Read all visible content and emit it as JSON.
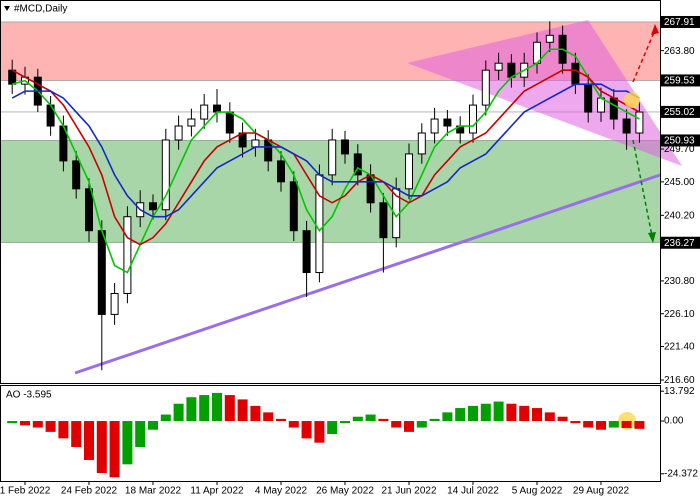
{
  "chart_data": {
    "type": "candlestick",
    "title": "#MCD,Daily",
    "categories": [
      null,
      "1 Feb 2022",
      null,
      null,
      null,
      null,
      "24 Feb 2022",
      null,
      null,
      null,
      null,
      "18 Mar 2022",
      null,
      null,
      null,
      null,
      "11 Apr 2022",
      null,
      null,
      null,
      null,
      "4 May 2022",
      null,
      null,
      null,
      null,
      "26 May 2022",
      null,
      null,
      null,
      null,
      "21 Jun 2022",
      null,
      null,
      null,
      null,
      "14 Jul 2022",
      null,
      null,
      null,
      null,
      "5 Aug 2022",
      null,
      null,
      null,
      null,
      "29 Aug 2022",
      null,
      null,
      null
    ],
    "open": [
      261,
      259,
      260,
      256,
      253,
      248,
      244,
      238,
      226,
      229,
      240,
      242,
      241,
      251,
      253,
      254,
      256,
      255,
      252,
      250,
      251,
      248,
      245,
      238,
      232,
      246,
      251,
      249,
      246,
      242,
      237,
      244,
      249,
      252,
      254,
      253,
      252,
      256,
      261,
      262,
      260,
      262,
      265,
      266,
      262,
      259,
      255,
      257,
      254,
      252
    ],
    "high": [
      262.5,
      261.5,
      261.2,
      257.3,
      254.5,
      249.4,
      245.5,
      239.5,
      230.5,
      241.5,
      243.8,
      243.2,
      252.6,
      254.5,
      255.5,
      257.6,
      258.3,
      256.4,
      253.5,
      252.6,
      252.4,
      249.4,
      246.5,
      239.4,
      247.5,
      252.6,
      252.3,
      250.4,
      247.5,
      243.4,
      245.6,
      250.5,
      253.4,
      255.6,
      255.3,
      254.4,
      257.5,
      262.4,
      263.5,
      263.3,
      263.5,
      266.4,
      268.0,
      267.4,
      263.5,
      260.4,
      258.5,
      258.3,
      255.4,
      256.5
    ],
    "low": [
      257.6,
      257.5,
      255.0,
      251.6,
      246.5,
      242.6,
      236.4,
      218.0,
      224.5,
      227.6,
      238.5,
      239.6,
      239.5,
      249.6,
      251.5,
      252.6,
      253.5,
      250.6,
      248.5,
      248.6,
      246.5,
      243.6,
      236.5,
      228.5,
      230.6,
      244.5,
      247.6,
      244.5,
      240.6,
      232.0,
      235.6,
      242.5,
      247.6,
      250.5,
      251.6,
      250.5,
      250.6,
      254.5,
      259.6,
      258.5,
      258.6,
      260.5,
      263.6,
      260.5,
      257.6,
      253.5,
      253.6,
      252.5,
      249.6,
      250.6
    ],
    "close": [
      259,
      260,
      256,
      253,
      248,
      244,
      238,
      226,
      229,
      240,
      242,
      241,
      251,
      253,
      254,
      256,
      255,
      252,
      250,
      251,
      248,
      245,
      238,
      232,
      246,
      251,
      249,
      246,
      242,
      237,
      244,
      249,
      252,
      254,
      253,
      252,
      256,
      261,
      262,
      260,
      262,
      265,
      266,
      262,
      259,
      255,
      257,
      254,
      252,
      255
    ],
    "series": [
      {
        "color": "#00c800",
        "values": [
          259,
          259.5,
          258,
          256,
          253,
          249,
          245,
          238,
          233,
          232,
          236,
          240,
          243,
          247,
          251,
          253,
          255,
          255,
          254,
          252,
          251,
          249,
          246,
          241,
          238,
          240,
          244,
          247,
          246,
          243,
          240,
          242,
          246,
          250,
          252,
          253,
          253,
          255,
          258,
          260,
          261,
          262,
          264,
          264,
          263,
          260,
          257,
          256,
          255,
          254
        ]
      },
      {
        "color": "#c80000",
        "values": [
          261,
          260,
          259,
          258,
          256,
          253,
          250,
          246,
          240,
          237,
          236,
          237,
          239,
          242,
          245,
          248,
          250,
          251,
          252,
          252,
          251,
          250,
          249,
          246,
          243,
          242,
          243,
          245,
          246,
          245,
          243,
          242,
          243,
          246,
          248,
          250,
          251,
          252,
          254,
          256,
          258,
          259,
          260,
          261,
          261,
          260,
          258,
          257,
          256,
          255
        ]
      },
      {
        "color": "#1428c8",
        "values": [
          257,
          258,
          258,
          258,
          257,
          255,
          253,
          250,
          246,
          243,
          241,
          240,
          240,
          241,
          243,
          245,
          247,
          248,
          249,
          250,
          250,
          250,
          249,
          248,
          246,
          245,
          245,
          245,
          245,
          245,
          244,
          243,
          243,
          244,
          245,
          247,
          248,
          249,
          251,
          253,
          255,
          256,
          257,
          258,
          259,
          259,
          259,
          258,
          258,
          257
        ]
      }
    ],
    "zones": [
      {
        "from": 259.53,
        "to": 267.91,
        "color": "#ffb4b4"
      },
      {
        "from": 236.27,
        "to": 250.93,
        "color": "#a9d6a9"
      }
    ],
    "levels": [
      255.02
    ],
    "ylim": [
      216.17,
      271.06
    ],
    "yticks": [
      267.91,
      {
        "value": 263.8,
        "label": "263.80"
      },
      259.53,
      255.02,
      250.93,
      {
        "value": 249.7,
        "label": "249.70"
      },
      {
        "value": 245.0,
        "label": "245.00"
      },
      {
        "value": 240.2,
        "label": "240.20"
      },
      236.27,
      {
        "value": 230.8,
        "label": "230.80"
      },
      {
        "value": 226.1,
        "label": "226.10"
      },
      {
        "value": 221.4,
        "label": "221.40"
      },
      {
        "value": 216.6,
        "label": "216.60"
      }
    ],
    "indicator": {
      "title": "AO -3.595",
      "values": [
        -1,
        -2,
        -3,
        -5,
        -8,
        -12,
        -18,
        -24,
        -26,
        -20,
        -12,
        -4,
        3,
        8,
        11,
        12,
        13,
        12,
        10,
        7,
        4,
        1,
        -3,
        -8,
        -10,
        -6,
        -1,
        2,
        3,
        1,
        -3,
        -5,
        -3,
        1,
        4,
        6,
        7,
        8,
        9,
        8,
        7,
        6,
        4,
        2,
        -1,
        -3,
        -4,
        -3,
        -3.2,
        -3.595
      ],
      "up_color": "#00a000",
      "down_color": "#e00000",
      "ylim": [
        -27.7,
        16.65
      ],
      "yticks": [
        13.792,
        {
          "value": 0,
          "label": "0.00"
        },
        -24.372
      ]
    }
  }
}
